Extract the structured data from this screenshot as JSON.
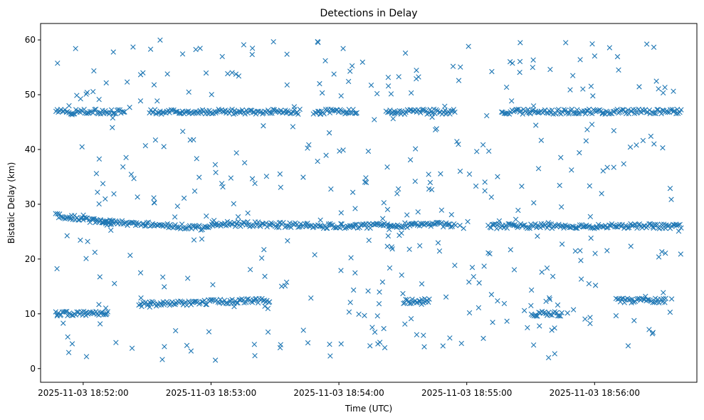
{
  "chart_data": {
    "type": "scatter",
    "title": "Detections in Delay",
    "xlabel": "Time (UTC)",
    "ylabel": "Bistatic Delay (km)",
    "marker": "x",
    "color": "#1f77b4",
    "grid": false,
    "legend": "none",
    "x_start": "2025-11-03 18:51:47",
    "x_end": "2025-11-03 18:56:41",
    "xlim": [
      "2025-11-03 18:51:40",
      "2025-11-03 18:56:48"
    ],
    "ylim": [
      -2.5,
      63
    ],
    "x_ticks": [
      "2025-11-03 18:52:00",
      "2025-11-03 18:53:00",
      "2025-11-03 18:54:00",
      "2025-11-03 18:55:00",
      "2025-11-03 18:56:00"
    ],
    "y_ticks": [
      0,
      10,
      20,
      30,
      40,
      50,
      60
    ],
    "point_count": 1500,
    "bands": [
      {
        "name_hint": "upper",
        "segments": [
          [
            "18:51:47",
            "18:52:20",
            46.9,
            46.9
          ],
          [
            "18:52:31",
            "18:53:42",
            46.9,
            46.9
          ],
          [
            "18:53:48",
            "18:54:09",
            46.9,
            46.9
          ],
          [
            "18:54:22",
            "18:54:55",
            46.9,
            46.9
          ],
          [
            "18:55:16",
            "18:56:41",
            46.9,
            46.9
          ]
        ]
      },
      {
        "name_hint": "middle",
        "segments": [
          [
            "18:51:47",
            "18:52:13",
            28.0,
            26.5
          ],
          [
            "18:52:08",
            "18:53:00",
            26.8,
            25.6
          ],
          [
            "18:53:00",
            "18:54:00",
            26.5,
            26.0
          ],
          [
            "18:54:00",
            "18:54:55",
            26.0,
            26.3
          ],
          [
            "18:55:10",
            "18:56:41",
            26.0,
            26.0
          ]
        ]
      },
      {
        "name_hint": "lower",
        "segments": [
          [
            "18:51:47",
            "18:52:12",
            10.0,
            10.0
          ],
          [
            "18:52:26",
            "18:53:28",
            11.7,
            12.5
          ],
          [
            "18:54:30",
            "18:54:43",
            12.3,
            12.3
          ],
          [
            "18:55:30",
            "18:55:45",
            10.0,
            10.0
          ],
          [
            "18:56:10",
            "18:56:34",
            12.4,
            12.4
          ]
        ]
      }
    ]
  }
}
